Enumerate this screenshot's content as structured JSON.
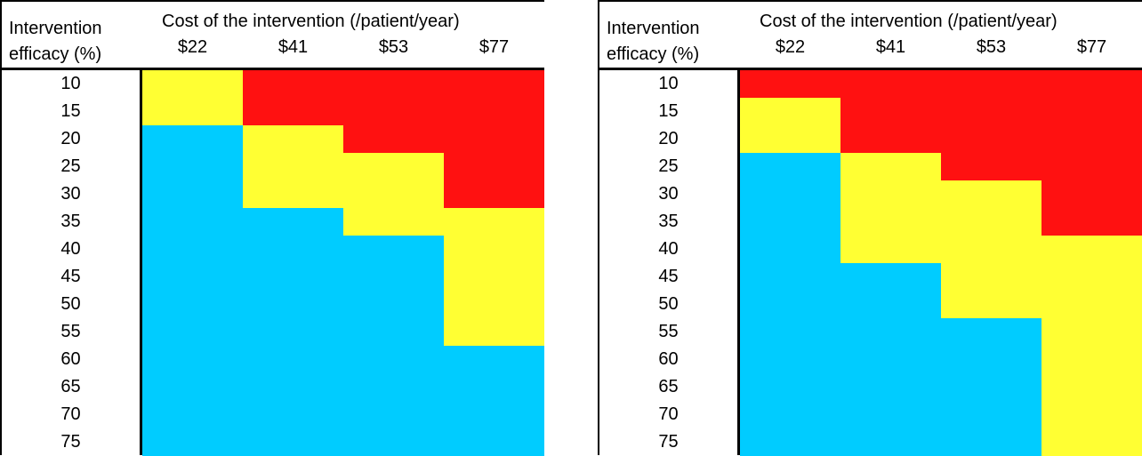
{
  "legend_colors": {
    "blue": "#00ccff",
    "yellow": "#ffff33",
    "red": "#ff1111"
  },
  "chart_data": [
    {
      "type": "heatmap",
      "row_header": [
        "Intervention",
        "efficacy (%)"
      ],
      "column_header": "Cost of the intervention (/patient/year)",
      "columns": [
        "$22",
        "$41",
        "$53",
        "$77"
      ],
      "rows": [
        "10",
        "15",
        "20",
        "25",
        "30",
        "35",
        "40",
        "45",
        "50",
        "55",
        "60",
        "65",
        "70",
        "75"
      ],
      "values": [
        [
          "yellow",
          "red",
          "red",
          "red"
        ],
        [
          "yellow",
          "red",
          "red",
          "red"
        ],
        [
          "blue",
          "yellow",
          "red",
          "red"
        ],
        [
          "blue",
          "yellow",
          "yellow",
          "red"
        ],
        [
          "blue",
          "yellow",
          "yellow",
          "red"
        ],
        [
          "blue",
          "blue",
          "yellow",
          "yellow"
        ],
        [
          "blue",
          "blue",
          "blue",
          "yellow"
        ],
        [
          "blue",
          "blue",
          "blue",
          "yellow"
        ],
        [
          "blue",
          "blue",
          "blue",
          "yellow"
        ],
        [
          "blue",
          "blue",
          "blue",
          "yellow"
        ],
        [
          "blue",
          "blue",
          "blue",
          "blue"
        ],
        [
          "blue",
          "blue",
          "blue",
          "blue"
        ],
        [
          "blue",
          "blue",
          "blue",
          "blue"
        ],
        [
          "blue",
          "blue",
          "blue",
          "blue"
        ]
      ]
    },
    {
      "type": "heatmap",
      "row_header": [
        "Intervention",
        "efficacy (%)"
      ],
      "column_header": "Cost of the intervention (/patient/year)",
      "columns": [
        "$22",
        "$41",
        "$53",
        "$77"
      ],
      "rows": [
        "10",
        "15",
        "20",
        "25",
        "30",
        "35",
        "40",
        "45",
        "50",
        "55",
        "60",
        "65",
        "70",
        "75"
      ],
      "values": [
        [
          "red",
          "red",
          "red",
          "red"
        ],
        [
          "yellow",
          "red",
          "red",
          "red"
        ],
        [
          "yellow",
          "red",
          "red",
          "red"
        ],
        [
          "blue",
          "yellow",
          "red",
          "red"
        ],
        [
          "blue",
          "yellow",
          "yellow",
          "red"
        ],
        [
          "blue",
          "yellow",
          "yellow",
          "red"
        ],
        [
          "blue",
          "yellow",
          "yellow",
          "yellow"
        ],
        [
          "blue",
          "blue",
          "yellow",
          "yellow"
        ],
        [
          "blue",
          "blue",
          "yellow",
          "yellow"
        ],
        [
          "blue",
          "blue",
          "blue",
          "yellow"
        ],
        [
          "blue",
          "blue",
          "blue",
          "yellow"
        ],
        [
          "blue",
          "blue",
          "blue",
          "yellow"
        ],
        [
          "blue",
          "blue",
          "blue",
          "yellow"
        ],
        [
          "blue",
          "blue",
          "blue",
          "yellow"
        ]
      ]
    }
  ]
}
